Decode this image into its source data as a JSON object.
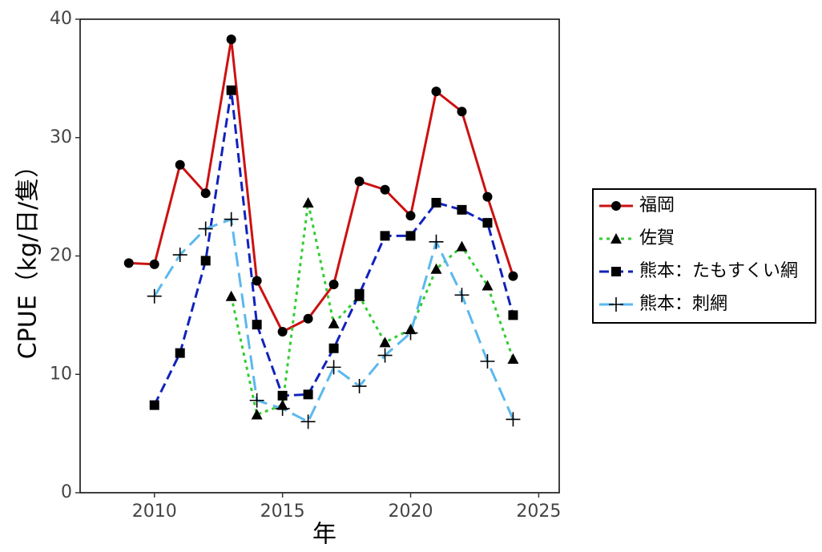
{
  "chart_data": {
    "type": "line",
    "xlabel": "年",
    "ylabel": "CPUE（kg/日/隻）",
    "x": [
      2009,
      2010,
      2011,
      2012,
      2013,
      2014,
      2015,
      2016,
      2017,
      2018,
      2019,
      2020,
      2021,
      2022,
      2023,
      2024
    ],
    "series": [
      {
        "name": "福岡",
        "color": "#cc1111",
        "dash": "solid",
        "marker": "circle",
        "values": [
          19.4,
          19.3,
          27.7,
          25.3,
          38.3,
          17.9,
          13.6,
          14.7,
          17.6,
          26.3,
          25.6,
          23.4,
          33.9,
          32.2,
          25.0,
          18.3
        ]
      },
      {
        "name": "佐賀",
        "color": "#33cc33",
        "dash": "dotted",
        "marker": "triangle",
        "values": [
          null,
          null,
          null,
          null,
          16.6,
          6.6,
          7.4,
          24.5,
          14.3,
          16.6,
          12.7,
          13.8,
          18.9,
          20.8,
          17.5,
          11.3
        ]
      },
      {
        "name": "熊本：たもすくい網",
        "color": "#1122bb",
        "dash": "dashed",
        "marker": "square",
        "values": [
          null,
          7.4,
          11.8,
          19.6,
          34.0,
          14.2,
          8.2,
          8.3,
          12.2,
          16.8,
          21.7,
          21.7,
          24.5,
          23.9,
          22.8,
          15.0
        ]
      },
      {
        "name": "熊本：刺網",
        "color": "#5bb8ee",
        "dash": "longdash",
        "marker": "plus",
        "values": [
          null,
          16.6,
          20.1,
          22.3,
          23.1,
          7.8,
          7.1,
          6.0,
          10.6,
          9.0,
          11.6,
          13.5,
          21.2,
          16.7,
          11.1,
          6.2
        ]
      }
    ],
    "xlim": [
      2007.1,
      2025.8
    ],
    "xticks": [
      2010,
      2015,
      2020,
      2025
    ],
    "ylim": [
      0,
      40
    ],
    "yticks": [
      0,
      10,
      20,
      30,
      40
    ],
    "grid": false,
    "legend": "right"
  }
}
